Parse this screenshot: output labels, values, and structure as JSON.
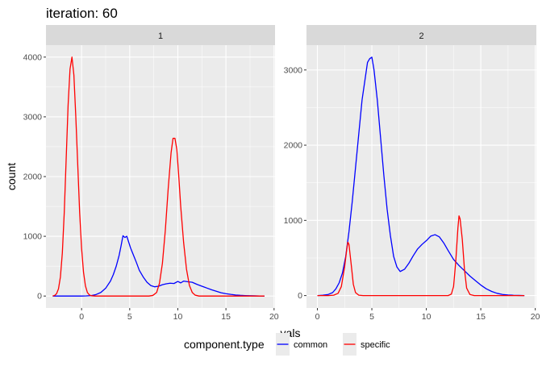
{
  "chart_data": {
    "type": "line",
    "title": "iteration: 60",
    "xlabel": "vals",
    "ylabel": "count",
    "grid": true,
    "legend": {
      "title": "component.type",
      "position": "bottom",
      "entries": [
        {
          "name": "common",
          "color": "#0000ff"
        },
        {
          "name": "specific",
          "color": "#ff0000"
        }
      ]
    },
    "panels": [
      {
        "strip": "1",
        "xlim": [
          -3.7,
          20.1
        ],
        "ylim": [
          -200,
          4200
        ],
        "x_ticks": [
          0,
          5,
          10,
          15,
          20
        ],
        "y_ticks": [
          0,
          1000,
          2000,
          3000,
          4000
        ],
        "series": [
          {
            "name": "common",
            "color": "#0000ff",
            "points": [
              [
                -3,
                0
              ],
              [
                -2,
                0
              ],
              [
                -1,
                0
              ],
              [
                0,
                0
              ],
              [
                0.5,
                2
              ],
              [
                1,
                8
              ],
              [
                1.5,
                25
              ],
              [
                2,
                60
              ],
              [
                2.5,
                130
              ],
              [
                3,
                250
              ],
              [
                3.3,
                360
              ],
              [
                3.6,
                500
              ],
              [
                3.9,
                680
              ],
              [
                4.1,
                840
              ],
              [
                4.3,
                1010
              ],
              [
                4.5,
                980
              ],
              [
                4.7,
                1000
              ],
              [
                4.9,
                900
              ],
              [
                5.1,
                800
              ],
              [
                5.4,
                680
              ],
              [
                5.7,
                560
              ],
              [
                6,
                430
              ],
              [
                6.4,
                320
              ],
              [
                6.8,
                230
              ],
              [
                7.2,
                175
              ],
              [
                7.6,
                155
              ],
              [
                8,
                165
              ],
              [
                8.4,
                190
              ],
              [
                8.8,
                205
              ],
              [
                9.2,
                215
              ],
              [
                9.6,
                210
              ],
              [
                10,
                245
              ],
              [
                10.3,
                220
              ],
              [
                10.6,
                250
              ],
              [
                11,
                240
              ],
              [
                11.5,
                230
              ],
              [
                12,
                195
              ],
              [
                12.5,
                165
              ],
              [
                13,
                135
              ],
              [
                13.5,
                105
              ],
              [
                14,
                80
              ],
              [
                14.5,
                55
              ],
              [
                15,
                40
              ],
              [
                15.5,
                28
              ],
              [
                16,
                18
              ],
              [
                16.5,
                12
              ],
              [
                17,
                8
              ],
              [
                17.5,
                5
              ],
              [
                18,
                3
              ],
              [
                18.5,
                1
              ],
              [
                19,
                0
              ]
            ]
          },
          {
            "name": "specific",
            "color": "#ff0000",
            "points": [
              [
                -3,
                0
              ],
              [
                -2.8,
                10
              ],
              [
                -2.6,
                40
              ],
              [
                -2.4,
                120
              ],
              [
                -2.2,
                320
              ],
              [
                -2,
                720
              ],
              [
                -1.8,
                1400
              ],
              [
                -1.6,
                2300
              ],
              [
                -1.4,
                3200
              ],
              [
                -1.2,
                3800
              ],
              [
                -1,
                4000
              ],
              [
                -0.8,
                3700
              ],
              [
                -0.6,
                3000
              ],
              [
                -0.4,
                2200
              ],
              [
                -0.2,
                1400
              ],
              [
                0,
                800
              ],
              [
                0.2,
                400
              ],
              [
                0.4,
                170
              ],
              [
                0.6,
                60
              ],
              [
                0.8,
                20
              ],
              [
                1,
                5
              ],
              [
                1.4,
                0
              ],
              [
                2,
                0
              ],
              [
                4,
                0
              ],
              [
                6,
                0
              ],
              [
                7,
                0
              ],
              [
                7.4,
                10
              ],
              [
                7.8,
                60
              ],
              [
                8.1,
                220
              ],
              [
                8.4,
                550
              ],
              [
                8.7,
                1100
              ],
              [
                9,
                1800
              ],
              [
                9.3,
                2400
              ],
              [
                9.5,
                2640
              ],
              [
                9.7,
                2640
              ],
              [
                9.9,
                2450
              ],
              [
                10.1,
                2000
              ],
              [
                10.3,
                1500
              ],
              [
                10.6,
                900
              ],
              [
                10.9,
                450
              ],
              [
                11.2,
                180
              ],
              [
                11.5,
                60
              ],
              [
                11.8,
                15
              ],
              [
                12.2,
                0
              ],
              [
                14,
                0
              ],
              [
                16,
                0
              ],
              [
                19,
                0
              ]
            ]
          }
        ]
      },
      {
        "strip": "2",
        "xlim": [
          -1.0,
          20.1
        ],
        "ylim": [
          -165,
          3330
        ],
        "x_ticks": [
          0,
          5,
          10,
          15,
          20
        ],
        "y_ticks": [
          0,
          1000,
          2000,
          3000
        ],
        "series": [
          {
            "name": "common",
            "color": "#0000ff",
            "points": [
              [
                0,
                0
              ],
              [
                0.5,
                5
              ],
              [
                1,
                15
              ],
              [
                1.4,
                40
              ],
              [
                1.7,
                90
              ],
              [
                2,
                170
              ],
              [
                2.3,
                300
              ],
              [
                2.6,
                520
              ],
              [
                2.9,
                850
              ],
              [
                3.2,
                1250
              ],
              [
                3.5,
                1700
              ],
              [
                3.8,
                2150
              ],
              [
                4.1,
                2600
              ],
              [
                4.4,
                2900
              ],
              [
                4.6,
                3100
              ],
              [
                4.8,
                3150
              ],
              [
                5,
                3170
              ],
              [
                5.2,
                3000
              ],
              [
                5.5,
                2600
              ],
              [
                5.8,
                2100
              ],
              [
                6.1,
                1600
              ],
              [
                6.4,
                1150
              ],
              [
                6.7,
                800
              ],
              [
                7,
                520
              ],
              [
                7.3,
                380
              ],
              [
                7.6,
                320
              ],
              [
                8,
                350
              ],
              [
                8.4,
                430
              ],
              [
                8.8,
                530
              ],
              [
                9.2,
                620
              ],
              [
                9.6,
                680
              ],
              [
                10,
                730
              ],
              [
                10.4,
                790
              ],
              [
                10.8,
                810
              ],
              [
                11.2,
                780
              ],
              [
                11.6,
                700
              ],
              [
                12,
                600
              ],
              [
                12.5,
                480
              ],
              [
                13,
                400
              ],
              [
                13.5,
                330
              ],
              [
                14,
                260
              ],
              [
                14.5,
                200
              ],
              [
                15,
                140
              ],
              [
                15.5,
                90
              ],
              [
                16,
                55
              ],
              [
                16.5,
                30
              ],
              [
                17,
                15
              ],
              [
                17.5,
                8
              ],
              [
                18,
                4
              ],
              [
                18.5,
                2
              ],
              [
                19,
                0
              ]
            ]
          },
          {
            "name": "specific",
            "color": "#ff0000",
            "points": [
              [
                0,
                0
              ],
              [
                1,
                0
              ],
              [
                1.5,
                5
              ],
              [
                1.9,
                30
              ],
              [
                2.2,
                120
              ],
              [
                2.5,
                380
              ],
              [
                2.7,
                620
              ],
              [
                2.8,
                710
              ],
              [
                2.9,
                680
              ],
              [
                3.1,
                420
              ],
              [
                3.3,
                150
              ],
              [
                3.5,
                40
              ],
              [
                3.8,
                5
              ],
              [
                4.2,
                0
              ],
              [
                8,
                0
              ],
              [
                11,
                0
              ],
              [
                12,
                0
              ],
              [
                12.3,
                20
              ],
              [
                12.5,
                120
              ],
              [
                12.7,
                450
              ],
              [
                12.9,
                900
              ],
              [
                13,
                1060
              ],
              [
                13.1,
                1020
              ],
              [
                13.3,
                750
              ],
              [
                13.5,
                350
              ],
              [
                13.7,
                100
              ],
              [
                14,
                15
              ],
              [
                14.4,
                0
              ],
              [
                16,
                0
              ],
              [
                19,
                0
              ]
            ]
          }
        ]
      }
    ]
  }
}
